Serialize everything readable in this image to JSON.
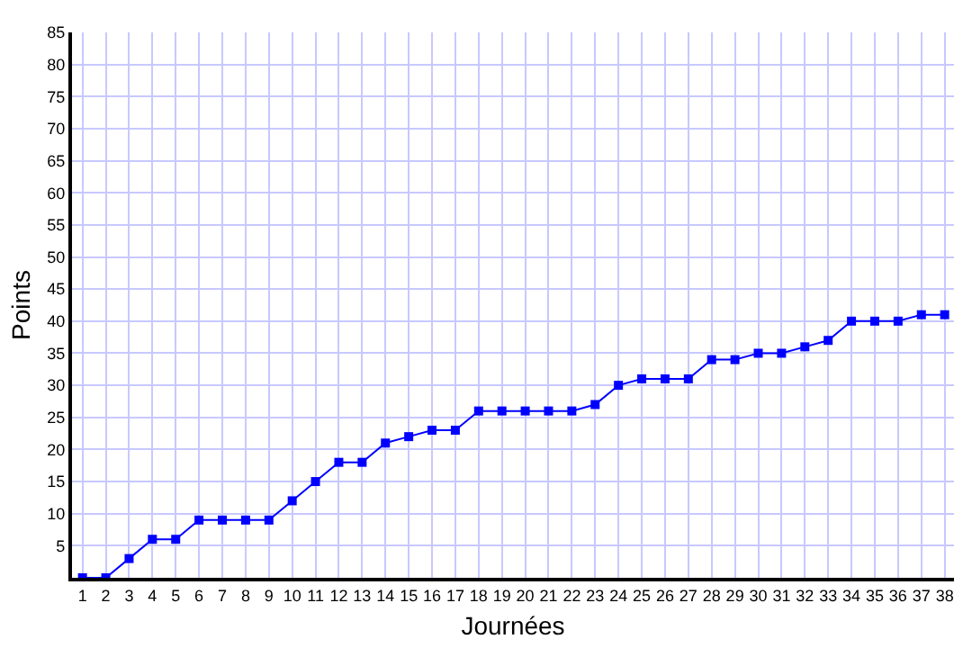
{
  "chart_data": {
    "type": "line",
    "xlabel": "Journées",
    "ylabel": "Points",
    "x": [
      1,
      2,
      3,
      4,
      5,
      6,
      7,
      8,
      9,
      10,
      11,
      12,
      13,
      14,
      15,
      16,
      17,
      18,
      19,
      20,
      21,
      22,
      23,
      24,
      25,
      26,
      27,
      28,
      29,
      30,
      31,
      32,
      33,
      34,
      35,
      36,
      37,
      38
    ],
    "series": [
      {
        "color": "#0000ff",
        "values": [
          0,
          0,
          3,
          6,
          6,
          9,
          9,
          9,
          9,
          12,
          15,
          18,
          18,
          21,
          22,
          23,
          23,
          26,
          26,
          26,
          26,
          26,
          27,
          30,
          31,
          31,
          31,
          34,
          34,
          35,
          35,
          36,
          37,
          40,
          40,
          40,
          41,
          41
        ]
      }
    ],
    "xlim": [
      0.55,
      38.4
    ],
    "xticks": [
      1,
      2,
      3,
      4,
      5,
      6,
      7,
      8,
      9,
      10,
      11,
      12,
      13,
      14,
      15,
      16,
      17,
      18,
      19,
      20,
      21,
      22,
      23,
      24,
      25,
      26,
      27,
      28,
      29,
      30,
      31,
      32,
      33,
      34,
      35,
      36,
      37,
      38
    ],
    "ylim": [
      0,
      85
    ],
    "yticks": [
      5,
      10,
      15,
      20,
      25,
      30,
      35,
      40,
      45,
      50,
      55,
      60,
      65,
      70,
      75,
      80,
      85
    ],
    "grid": true,
    "marker": "square",
    "line_style": "solid"
  }
}
